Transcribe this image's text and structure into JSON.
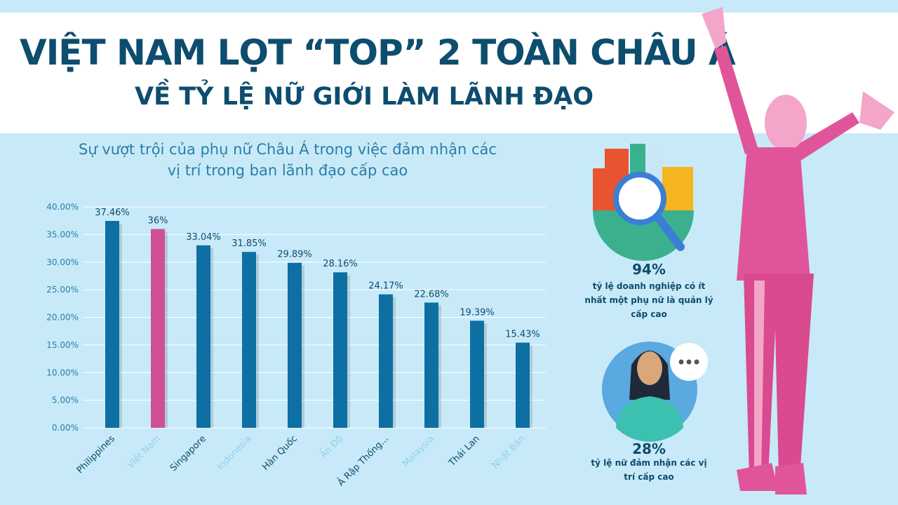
{
  "header": {
    "title": "VIỆT NAM LỌT “TOP” 2 TOÀN CHÂU Á",
    "subtitle": "VỀ TỶ LỆ NỮ GIỚI LÀM LÃNH ĐẠO"
  },
  "chart_data": {
    "type": "bar",
    "title": "Sự vượt trội của phụ nữ Châu Á trong việc đảm nhận các vị trí trong ban lãnh đạo cấp cao",
    "categories": [
      "Philippines",
      "Việt Nam",
      "Singapore",
      "Indonesia",
      "Hàn Quốc",
      "Ấn Độ",
      "Ả Rập Thống...",
      "Malaysia",
      "Thái Lan",
      "Nhật Bản"
    ],
    "values": [
      37.46,
      36,
      33.04,
      31.85,
      29.89,
      28.16,
      24.17,
      22.68,
      19.39,
      15.43
    ],
    "value_labels": [
      "37.46%",
      "36%",
      "33.04%",
      "31.85%",
      "29.89%",
      "28.16%",
      "24.17%",
      "22.68%",
      "19.39%",
      "15.43%"
    ],
    "colors": [
      "#0e6fa3",
      "#d14f95",
      "#0e6fa3",
      "#0e6fa3",
      "#0e6fa3",
      "#0e6fa3",
      "#0e6fa3",
      "#0e6fa3",
      "#0e6fa3",
      "#0e6fa3"
    ],
    "ylim": [
      0,
      40
    ],
    "yticks": [
      {
        "value": 0,
        "label": "0.00%"
      },
      {
        "value": 5,
        "label": "5.00%"
      },
      {
        "value": 10,
        "label": "10.00%"
      },
      {
        "value": 15,
        "label": "15.00%"
      },
      {
        "value": 20,
        "label": "20.00%"
      },
      {
        "value": 25,
        "label": "25.00%"
      },
      {
        "value": 30,
        "label": "30.00%"
      },
      {
        "value": 35,
        "label": "35.00%"
      },
      {
        "value": 40,
        "label": "40.00%"
      }
    ],
    "grid": true
  },
  "stats": [
    {
      "value": "94%",
      "label": "tỷ lệ doanh nghiệp có ít nhất một phụ nữ là quản lý cấp cao"
    },
    {
      "value": "28%",
      "label": "tỷ lệ nữ đảm nhận các vị trí cấp cao"
    }
  ]
}
